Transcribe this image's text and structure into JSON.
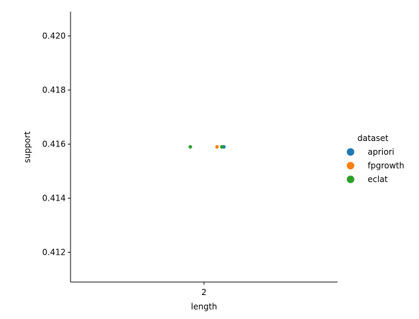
{
  "chart_data": {
    "type": "scatter",
    "subtype": "strip",
    "xlabel": "length",
    "ylabel": "support",
    "categories": [
      "2"
    ],
    "ylim": [
      0.4109,
      0.4209
    ],
    "yticks": [
      "0.412",
      "0.414",
      "0.416",
      "0.418",
      "0.420"
    ],
    "grid": false,
    "legend": {
      "title": "dataset",
      "placement": "right"
    },
    "series": [
      {
        "name": "apriori",
        "color": "#1f77b4",
        "x": [
          2,
          2
        ],
        "y": [
          0.4159,
          0.4159
        ]
      },
      {
        "name": "fpgrowth",
        "color": "#ff7f0e",
        "x": [
          2
        ],
        "y": [
          0.4159
        ]
      },
      {
        "name": "eclat",
        "color": "#2ca02c",
        "x": [
          2,
          2
        ],
        "y": [
          0.4159,
          0.4159
        ]
      }
    ]
  }
}
